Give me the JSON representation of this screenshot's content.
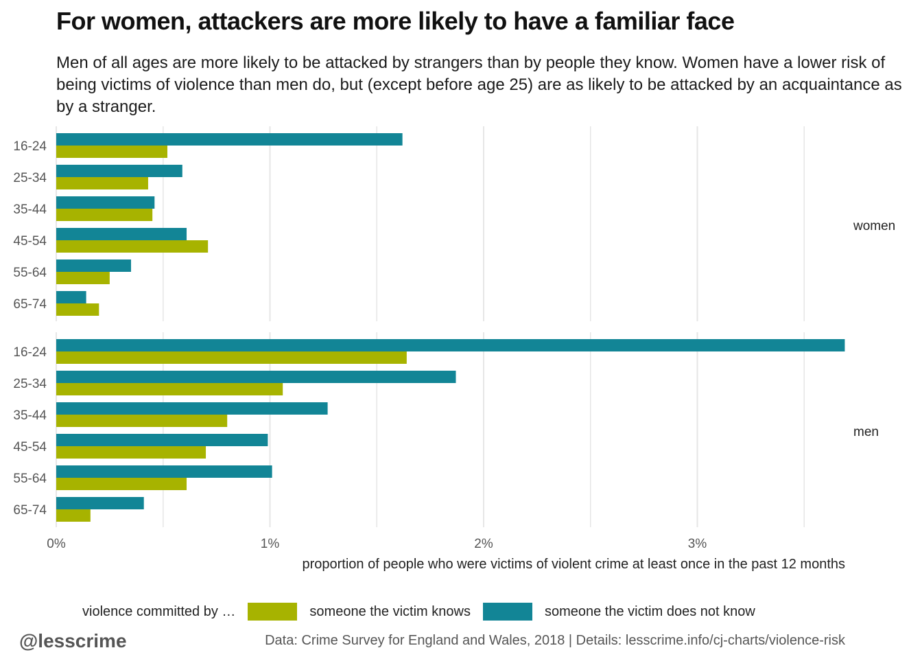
{
  "title": "For women, attackers are more likely to have a familiar face",
  "subtitle": "Men of all ages are more likely to be attacked by strangers than by people they know. Women have a lower risk of being victims of violence than men do, but (except before age 25) are as likely to be attacked by an acquaintance as by a stranger.",
  "legend": {
    "title": "violence committed by …",
    "items": [
      {
        "label": "someone the victim knows"
      },
      {
        "label": "someone the victim does not know"
      }
    ]
  },
  "footer": {
    "handle": "@lesscrime",
    "caption": "Data: Crime Survey for England and Wales, 2018 |  Details: lesscrime.info/cj-charts/violence-risk"
  },
  "colors": {
    "known": "#a7b300",
    "stranger": "#128596",
    "grid": "#e6e6e6"
  },
  "chart_data": {
    "type": "bar",
    "orientation": "horizontal",
    "xlabel": "proportion of people who were victims of violent crime at least once in the past 12 months",
    "x_ticks": [
      {
        "value": 0,
        "label": "0%"
      },
      {
        "value": 1,
        "label": "1%"
      },
      {
        "value": 2,
        "label": "2%"
      },
      {
        "value": 3,
        "label": "3%"
      }
    ],
    "xlim": [
      0,
      3.7
    ],
    "grid": true,
    "legend_position": "bottom",
    "panels": [
      {
        "name": "women",
        "categories": [
          "16-24",
          "25-34",
          "35-44",
          "45-54",
          "55-64",
          "65-74"
        ],
        "series": [
          {
            "name": "someone the victim does not know",
            "values": [
              1.62,
              0.59,
              0.46,
              0.61,
              0.35,
              0.14
            ]
          },
          {
            "name": "someone the victim knows",
            "values": [
              0.52,
              0.43,
              0.45,
              0.71,
              0.25,
              0.2
            ]
          }
        ]
      },
      {
        "name": "men",
        "categories": [
          "16-24",
          "25-34",
          "35-44",
          "45-54",
          "55-64",
          "65-74"
        ],
        "series": [
          {
            "name": "someone the victim does not know",
            "values": [
              3.69,
              1.87,
              1.27,
              0.99,
              1.01,
              0.41
            ]
          },
          {
            "name": "someone the victim knows",
            "values": [
              1.64,
              1.06,
              0.8,
              0.7,
              0.61,
              0.16
            ]
          }
        ]
      }
    ]
  }
}
